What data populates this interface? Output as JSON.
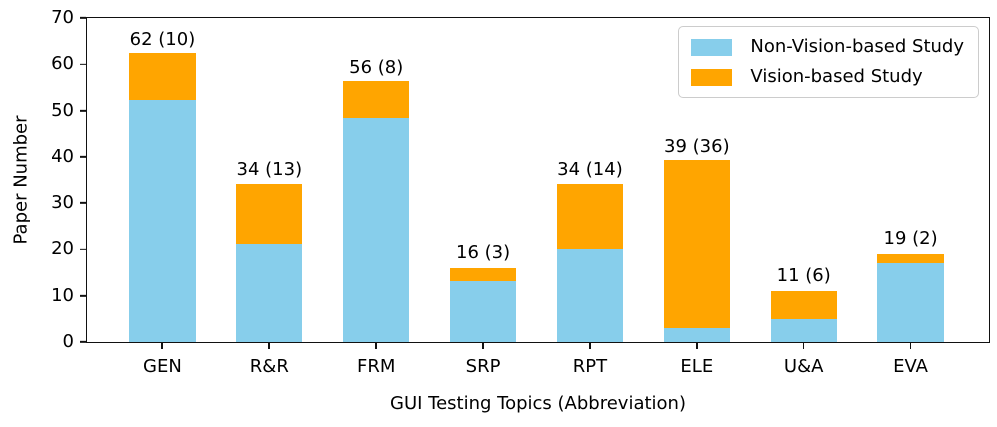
{
  "chart_data": {
    "type": "bar",
    "stacked": true,
    "title": "",
    "xlabel": "GUI Testing Topics (Abbreviation)",
    "ylabel": "Paper Number",
    "categories": [
      "GEN",
      "R&R",
      "FRM",
      "SRP",
      "RPT",
      "ELE",
      "U&A",
      "EVA"
    ],
    "series": [
      {
        "name": "Non-Vision-based Study",
        "color": "#87CEEB",
        "values": [
          52,
          21,
          48,
          13,
          20,
          3,
          5,
          17
        ]
      },
      {
        "name": "Vision-based Study",
        "color": "#FFA500",
        "values": [
          10,
          13,
          8,
          3,
          14,
          36,
          6,
          2
        ]
      }
    ],
    "totals": [
      62,
      34,
      56,
      16,
      34,
      39,
      11,
      19
    ],
    "bar_labels": [
      "62 (10)",
      "34 (13)",
      "56 (8)",
      "16 (3)",
      "34 (14)",
      "39 (36)",
      "11 (6)",
      "19 (2)"
    ],
    "ylim": [
      0,
      70
    ],
    "yticks": [
      0,
      10,
      20,
      30,
      40,
      50,
      60,
      70
    ],
    "grid": false,
    "legend_position": "upper right",
    "colors": {
      "non_vision": "#87CEEB",
      "vision": "#FFA500",
      "axis": "#111111",
      "text": "#000000",
      "legend_border": "#cccccc"
    }
  }
}
